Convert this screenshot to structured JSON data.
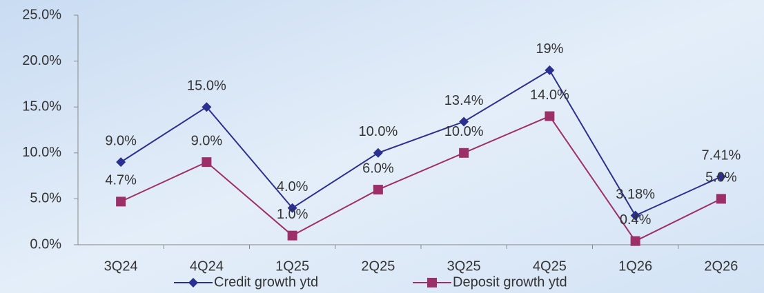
{
  "chart_data": {
    "type": "line",
    "categories": [
      "3Q24",
      "4Q24",
      "1Q25",
      "2Q25",
      "3Q25",
      "4Q25",
      "1Q26",
      "2Q26"
    ],
    "series": [
      {
        "name": "Credit growth ytd",
        "color": "#2b2f8f",
        "marker": "diamond",
        "values": [
          9.0,
          15.0,
          4.0,
          10.0,
          13.4,
          19,
          3.18,
          7.41
        ],
        "value_labels": [
          "9.0%",
          "15.0%",
          "4.0%",
          "10.0%",
          "13.4%",
          "19%",
          "3.18%",
          "7.41%"
        ]
      },
      {
        "name": "Deposit growth ytd",
        "color": "#9c2f68",
        "marker": "square",
        "values": [
          4.7,
          9.0,
          1.0,
          6.0,
          10.0,
          14.0,
          0.4,
          5.0
        ],
        "value_labels": [
          "4.7%",
          "9.0%",
          "1.0%",
          "6.0%",
          "10.0%",
          "14.0%",
          "0.4%",
          "5.0%"
        ]
      }
    ],
    "ylim": [
      0,
      25
    ],
    "yticks": [
      {
        "value": 0,
        "label": "0.0%"
      },
      {
        "value": 5,
        "label": "5.0%"
      },
      {
        "value": 10,
        "label": "10.0%"
      },
      {
        "value": 15,
        "label": "15.0%"
      },
      {
        "value": 20,
        "label": "20.0%"
      },
      {
        "value": 25,
        "label": "25.0%"
      }
    ],
    "grid": false,
    "legend": "bottom"
  }
}
